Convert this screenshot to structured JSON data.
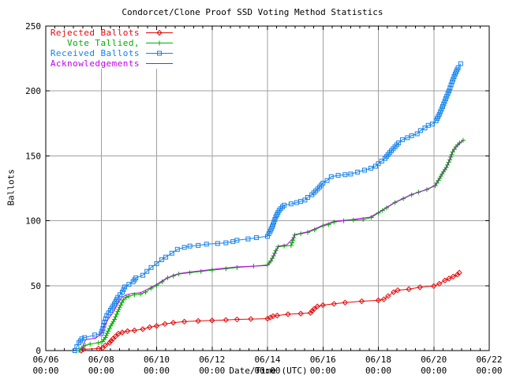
{
  "chart_data": {
    "type": "line",
    "title": "Condorcet/Clone Proof SSD Voting Method Statistics",
    "xlabel": "Date/Time (UTC)",
    "ylabel": "Ballots",
    "background_color": "#ffffff",
    "frame_color": "#000000",
    "grid_color": "#a0a0a0",
    "text_color": "#000000",
    "grid": true,
    "legend_position": "top-left-inside",
    "x_axis": {
      "unit": "days since 06/06 00:00 (UTC)",
      "range": [
        0,
        16
      ],
      "minor_ticks_per_major": 6,
      "ticks": [
        {
          "day": 0,
          "date": "06/06",
          "time": "00:00"
        },
        {
          "day": 2,
          "date": "06/08",
          "time": "00:00"
        },
        {
          "day": 4,
          "date": "06/10",
          "time": "00:00"
        },
        {
          "day": 6,
          "date": "06/12",
          "time": "00:00"
        },
        {
          "day": 8,
          "date": "06/14",
          "time": "00:00"
        },
        {
          "day": 10,
          "date": "06/16",
          "time": "00:00"
        },
        {
          "day": 12,
          "date": "06/18",
          "time": "00:00"
        },
        {
          "day": 14,
          "date": "06/20",
          "time": "00:00"
        },
        {
          "day": 16,
          "date": "06/22",
          "time": "00:00"
        }
      ]
    },
    "y_axis": {
      "range": [
        0,
        250
      ],
      "ticks": [
        {
          "value": 0,
          "label": "0"
        },
        {
          "value": 50,
          "label": "50"
        },
        {
          "value": 100,
          "label": "100"
        },
        {
          "value": 150,
          "label": "150"
        },
        {
          "value": 200,
          "label": "200"
        },
        {
          "value": 250,
          "label": "250"
        }
      ]
    },
    "series": [
      {
        "name": "Rejected Ballots",
        "color": "#e60909",
        "marker": "diamond",
        "points": [
          [
            1.28,
            0
          ],
          [
            1.35,
            1
          ],
          [
            1.9,
            1.5
          ],
          [
            2.05,
            2
          ],
          [
            2.15,
            4
          ],
          [
            2.3,
            6
          ],
          [
            2.42,
            9
          ],
          [
            2.52,
            11
          ],
          [
            2.62,
            13
          ],
          [
            2.76,
            14
          ],
          [
            2.95,
            15
          ],
          [
            3.2,
            15.5
          ],
          [
            3.5,
            16.5
          ],
          [
            3.75,
            18
          ],
          [
            4.0,
            19
          ],
          [
            4.3,
            20.5
          ],
          [
            4.6,
            21.5
          ],
          [
            5.0,
            22.3
          ],
          [
            5.5,
            22.8
          ],
          [
            6.0,
            23.2
          ],
          [
            6.5,
            23.6
          ],
          [
            6.9,
            24
          ],
          [
            7.4,
            24.3
          ],
          [
            8.0,
            24.6
          ],
          [
            8.1,
            25.5
          ],
          [
            8.2,
            26.5
          ],
          [
            8.35,
            27
          ],
          [
            8.74,
            28
          ],
          [
            9.2,
            28.5
          ],
          [
            9.55,
            29
          ],
          [
            9.68,
            32
          ],
          [
            9.8,
            34
          ],
          [
            10.0,
            35
          ],
          [
            10.4,
            36
          ],
          [
            10.8,
            37
          ],
          [
            11.4,
            38
          ],
          [
            12.0,
            38.7
          ],
          [
            12.2,
            39.5
          ],
          [
            12.35,
            42
          ],
          [
            12.55,
            45
          ],
          [
            12.7,
            46.5
          ],
          [
            13.1,
            47.3
          ],
          [
            13.5,
            48.8
          ],
          [
            14.0,
            49.7
          ],
          [
            14.2,
            51.5
          ],
          [
            14.4,
            54
          ],
          [
            14.55,
            55.5
          ],
          [
            14.7,
            57
          ],
          [
            14.85,
            58.5
          ],
          [
            14.92,
            60
          ]
        ]
      },
      {
        "name": "Vote Tallied,",
        "color": "#00b000",
        "marker": "plus",
        "points": [
          [
            1.2,
            0
          ],
          [
            1.3,
            2
          ],
          [
            1.42,
            4
          ],
          [
            1.6,
            5
          ],
          [
            1.9,
            6
          ],
          [
            2.05,
            7
          ],
          [
            2.15,
            10
          ],
          [
            2.25,
            15
          ],
          [
            2.35,
            19
          ],
          [
            2.48,
            24
          ],
          [
            2.6,
            30
          ],
          [
            2.7,
            35
          ],
          [
            2.8,
            39
          ],
          [
            2.9,
            41
          ],
          [
            3.0,
            42
          ],
          [
            3.2,
            43
          ],
          [
            3.42,
            43.5
          ],
          [
            3.6,
            45
          ],
          [
            3.8,
            48
          ],
          [
            4.0,
            50
          ],
          [
            4.2,
            53
          ],
          [
            4.4,
            56
          ],
          [
            4.6,
            57.5
          ],
          [
            4.8,
            59
          ],
          [
            5.2,
            60
          ],
          [
            5.6,
            61
          ],
          [
            6.0,
            62
          ],
          [
            6.5,
            63
          ],
          [
            6.9,
            64
          ],
          [
            7.5,
            65
          ],
          [
            8.0,
            66
          ],
          [
            8.12,
            69
          ],
          [
            8.22,
            73
          ],
          [
            8.3,
            77
          ],
          [
            8.38,
            80
          ],
          [
            8.6,
            80.5
          ],
          [
            8.85,
            81
          ],
          [
            8.92,
            85
          ],
          [
            8.98,
            89
          ],
          [
            9.2,
            90
          ],
          [
            9.45,
            91
          ],
          [
            9.7,
            93
          ],
          [
            10.0,
            96
          ],
          [
            10.2,
            97
          ],
          [
            10.4,
            99
          ],
          [
            10.75,
            100
          ],
          [
            11.1,
            100.5
          ],
          [
            11.45,
            101
          ],
          [
            11.75,
            102.5
          ],
          [
            12.0,
            106
          ],
          [
            12.15,
            108
          ],
          [
            12.3,
            110
          ],
          [
            12.6,
            114
          ],
          [
            12.9,
            117
          ],
          [
            13.2,
            120
          ],
          [
            13.45,
            122
          ],
          [
            13.75,
            124
          ],
          [
            14.05,
            127
          ],
          [
            14.17,
            131
          ],
          [
            14.3,
            136
          ],
          [
            14.45,
            141
          ],
          [
            14.58,
            147
          ],
          [
            14.68,
            153
          ],
          [
            14.8,
            157
          ],
          [
            14.93,
            160
          ],
          [
            15.06,
            162
          ]
        ]
      },
      {
        "name": "Received Ballots",
        "color": "#1482ec",
        "marker": "square",
        "points": [
          [
            1.05,
            0
          ],
          [
            1.12,
            3
          ],
          [
            1.2,
            6
          ],
          [
            1.3,
            9
          ],
          [
            1.4,
            10
          ],
          [
            1.77,
            12
          ],
          [
            2.0,
            13
          ],
          [
            2.06,
            17
          ],
          [
            2.12,
            22
          ],
          [
            2.2,
            27
          ],
          [
            2.33,
            31
          ],
          [
            2.48,
            36
          ],
          [
            2.6,
            41
          ],
          [
            2.76,
            45
          ],
          [
            2.85,
            49
          ],
          [
            3.0,
            51
          ],
          [
            3.15,
            53
          ],
          [
            3.25,
            56
          ],
          [
            3.5,
            58
          ],
          [
            3.65,
            61
          ],
          [
            3.8,
            64
          ],
          [
            4.0,
            67
          ],
          [
            4.18,
            70
          ],
          [
            4.33,
            72
          ],
          [
            4.55,
            75
          ],
          [
            4.75,
            78
          ],
          [
            5.0,
            79.5
          ],
          [
            5.2,
            80.5
          ],
          [
            5.5,
            81
          ],
          [
            5.8,
            82
          ],
          [
            6.2,
            82.5
          ],
          [
            6.5,
            83
          ],
          [
            6.75,
            84
          ],
          [
            6.9,
            85
          ],
          [
            7.3,
            86
          ],
          [
            7.6,
            87
          ],
          [
            8.0,
            88
          ],
          [
            8.1,
            92
          ],
          [
            8.2,
            97
          ],
          [
            8.3,
            103
          ],
          [
            8.42,
            108
          ],
          [
            8.6,
            112
          ],
          [
            8.85,
            113
          ],
          [
            9.05,
            114
          ],
          [
            9.2,
            115
          ],
          [
            9.35,
            116
          ],
          [
            9.45,
            118
          ],
          [
            9.6,
            120
          ],
          [
            9.74,
            123
          ],
          [
            9.88,
            126
          ],
          [
            10.0,
            129
          ],
          [
            10.15,
            131
          ],
          [
            10.3,
            134
          ],
          [
            10.55,
            135
          ],
          [
            10.8,
            135.5
          ],
          [
            11.0,
            136
          ],
          [
            11.25,
            137.5
          ],
          [
            11.5,
            139
          ],
          [
            11.73,
            140.5
          ],
          [
            11.9,
            142
          ],
          [
            12.0,
            144
          ],
          [
            12.12,
            146
          ],
          [
            12.24,
            148
          ],
          [
            12.35,
            151
          ],
          [
            12.47,
            154
          ],
          [
            12.6,
            157
          ],
          [
            12.73,
            160
          ],
          [
            12.87,
            162.5
          ],
          [
            13.05,
            164
          ],
          [
            13.2,
            165.5
          ],
          [
            13.4,
            167
          ],
          [
            13.52,
            169.5
          ],
          [
            13.68,
            171.5
          ],
          [
            13.8,
            173.5
          ],
          [
            13.95,
            174.5
          ],
          [
            14.08,
            177
          ],
          [
            14.2,
            182
          ],
          [
            14.32,
            188
          ],
          [
            14.43,
            194
          ],
          [
            14.55,
            200
          ],
          [
            14.66,
            207
          ],
          [
            14.77,
            213
          ],
          [
            14.88,
            218
          ],
          [
            14.97,
            221
          ]
        ]
      },
      {
        "name": "Acknowledgements",
        "color": "#c000f0",
        "marker": "none",
        "points": [
          [
            1.3,
            0
          ],
          [
            1.36,
            5
          ],
          [
            1.45,
            8.5
          ],
          [
            1.8,
            9.5
          ],
          [
            2.0,
            13
          ],
          [
            2.1,
            19
          ],
          [
            2.25,
            24
          ],
          [
            2.45,
            30
          ],
          [
            2.6,
            36
          ],
          [
            2.75,
            41
          ],
          [
            2.9,
            43
          ],
          [
            3.1,
            44
          ],
          [
            3.42,
            44.5
          ],
          [
            3.65,
            47
          ],
          [
            4.0,
            51
          ],
          [
            4.3,
            55
          ],
          [
            4.6,
            58
          ],
          [
            4.85,
            59.5
          ],
          [
            5.2,
            60.5
          ],
          [
            6.0,
            62.5
          ],
          [
            6.9,
            64.5
          ],
          [
            7.5,
            65
          ],
          [
            8.0,
            65.5
          ],
          [
            8.15,
            70
          ],
          [
            8.3,
            76
          ],
          [
            8.4,
            80.5
          ],
          [
            8.7,
            81.5
          ],
          [
            8.9,
            86
          ],
          [
            9.0,
            89.5
          ],
          [
            9.45,
            91.5
          ],
          [
            10.0,
            96.5
          ],
          [
            10.4,
            99.5
          ],
          [
            11.0,
            100.8
          ],
          [
            11.7,
            102.8
          ],
          [
            12.0,
            106.3
          ],
          [
            12.3,
            110.3
          ],
          [
            12.6,
            114.3
          ],
          [
            12.9,
            117.3
          ],
          [
            13.2,
            120.3
          ],
          [
            13.5,
            122.3
          ],
          [
            13.75,
            124.3
          ],
          [
            14.05,
            127.3
          ],
          [
            14.3,
            136.3
          ],
          [
            14.5,
            143
          ],
          [
            14.66,
            153
          ],
          [
            14.85,
            158
          ],
          [
            15.06,
            162
          ]
        ]
      }
    ]
  }
}
